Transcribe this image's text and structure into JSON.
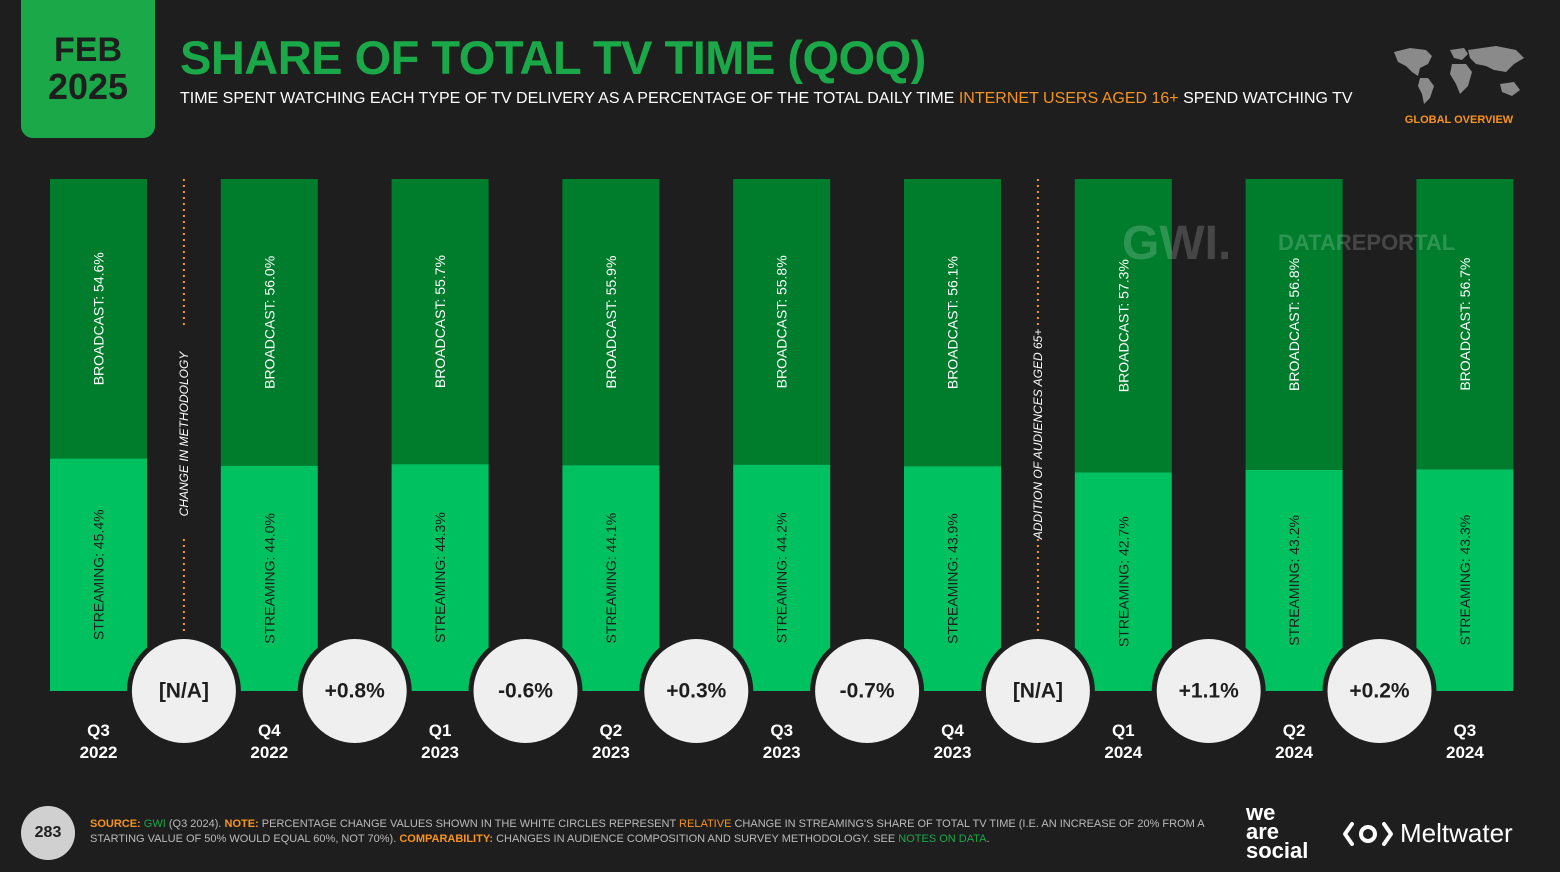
{
  "header": {
    "month": "FEB",
    "year": "2025",
    "title": "SHARE OF TOTAL TV TIME (QOQ)",
    "subtitle_pre": "TIME SPENT WATCHING EACH TYPE OF TV DELIVERY AS A PERCENTAGE OF THE TOTAL DAILY TIME ",
    "subtitle_highlight": "INTERNET USERS AGED 16+",
    "subtitle_post": " SPEND WATCHING TV",
    "region": "GLOBAL OVERVIEW"
  },
  "watermarks": {
    "gwi": "GWI.",
    "datareportal": "DATAREPORTAL"
  },
  "chart_data": {
    "type": "bar",
    "stacked": true,
    "categories": [
      [
        "Q3",
        "2022"
      ],
      [
        "Q4",
        "2022"
      ],
      [
        "Q1",
        "2023"
      ],
      [
        "Q2",
        "2023"
      ],
      [
        "Q3",
        "2023"
      ],
      [
        "Q4",
        "2023"
      ],
      [
        "Q1",
        "2024"
      ],
      [
        "Q2",
        "2024"
      ],
      [
        "Q3",
        "2024"
      ]
    ],
    "series": [
      {
        "name": "STREAMING",
        "values": [
          45.4,
          44.0,
          44.3,
          44.1,
          44.2,
          43.9,
          42.7,
          43.2,
          43.3
        ]
      },
      {
        "name": "BROADCAST",
        "values": [
          54.6,
          56.0,
          55.7,
          55.9,
          55.8,
          56.1,
          57.3,
          56.8,
          56.7
        ]
      }
    ],
    "bar_labels": {
      "streaming": [
        "STREAMING: 45.4%",
        "STREAMING: 44.0%",
        "STREAMING: 44.3%",
        "STREAMING: 44.1%",
        "STREAMING: 44.2%",
        "STREAMING: 43.9%",
        "STREAMING: 42.7%",
        "STREAMING: 43.2%",
        "STREAMING: 43.3%"
      ],
      "broadcast": [
        "BROADCAST: 54.6%",
        "BROADCAST: 56.0%",
        "BROADCAST: 55.7%",
        "BROADCAST: 55.9%",
        "BROADCAST: 55.8%",
        "BROADCAST: 56.1%",
        "BROADCAST: 57.3%",
        "BROADCAST: 56.8%",
        "BROADCAST: 56.7%"
      ]
    },
    "changes": [
      "[N/A]",
      "+0.8%",
      "-0.6%",
      "+0.3%",
      "-0.7%",
      "[N/A]",
      "+1.1%",
      "+0.2%"
    ],
    "annotations": [
      {
        "between": 0,
        "text": "CHANGE IN METHODOLOGY"
      },
      {
        "between": 5,
        "text": "ADDITION OF AUDIENCES AGED 65+"
      }
    ],
    "ylim": [
      0,
      100
    ],
    "colors": {
      "streaming": "#00c160",
      "broadcast": "#007d2c",
      "divider": "#f7941d",
      "circle": "#efefef"
    }
  },
  "footer": {
    "page": "283",
    "source_label": "SOURCE:",
    "source": "GWI",
    "source_detail": " (Q3 2024). ",
    "note_label": "NOTE:",
    "note_a": " PERCENTAGE CHANGE VALUES SHOWN IN THE WHITE CIRCLES REPRESENT ",
    "note_relative": "RELATIVE",
    "note_b": " CHANGE IN STREAMING'S SHARE OF TOTAL TV TIME (I.E. AN INCREASE OF 20% FROM A STARTING VALUE OF 50% WOULD EQUAL 60%, NOT 70%). ",
    "comp_label": "COMPARABILITY:",
    "comp_text": " CHANGES IN AUDIENCE COMPOSITION AND SURVEY METHODOLOGY. SEE ",
    "notes_link": "NOTES ON DATA",
    "end": ".",
    "brand1_l1": "we",
    "brand1_l2": "are",
    "brand1_l3": "social",
    "brand2": "Meltwater"
  }
}
